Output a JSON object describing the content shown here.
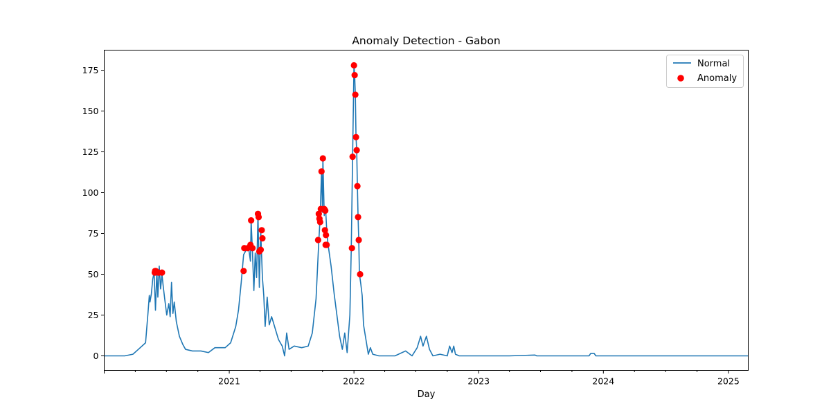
{
  "chart_data": {
    "type": "line",
    "title": "Anomaly Detection - Gabon",
    "xlabel": "Day",
    "ylabel": "",
    "x_range": [
      "2020-01-01",
      "2025-02-28"
    ],
    "ylim": [
      -8.9,
      187.3
    ],
    "y_ticks": [
      0,
      25,
      50,
      75,
      100,
      125,
      150,
      175
    ],
    "x_ticks": [
      {
        "date": "2021-01-01",
        "label": "2021"
      },
      {
        "date": "2022-01-01",
        "label": "2022"
      },
      {
        "date": "2023-01-01",
        "label": "2023"
      },
      {
        "date": "2024-01-01",
        "label": "2024"
      },
      {
        "date": "2025-01-01",
        "label": "2025"
      }
    ],
    "grid": false,
    "legend_position": "top-right",
    "series": [
      {
        "name": "Normal",
        "kind": "line",
        "color": "#1f77b4",
        "points": [
          [
            "2020-01-01",
            0
          ],
          [
            "2020-03-01",
            0
          ],
          [
            "2020-03-25",
            1
          ],
          [
            "2020-04-10",
            4
          ],
          [
            "2020-05-01",
            8
          ],
          [
            "2020-05-08",
            26
          ],
          [
            "2020-05-12",
            37
          ],
          [
            "2020-05-14",
            33
          ],
          [
            "2020-05-18",
            38
          ],
          [
            "2020-05-22",
            47
          ],
          [
            "2020-05-26",
            51
          ],
          [
            "2020-05-30",
            28
          ],
          [
            "2020-06-03",
            52
          ],
          [
            "2020-06-06",
            36
          ],
          [
            "2020-06-10",
            55
          ],
          [
            "2020-06-14",
            41
          ],
          [
            "2020-06-18",
            50
          ],
          [
            "2020-06-22",
            42
          ],
          [
            "2020-06-26",
            35
          ],
          [
            "2020-07-02",
            25
          ],
          [
            "2020-07-08",
            32
          ],
          [
            "2020-07-12",
            24
          ],
          [
            "2020-07-16",
            45
          ],
          [
            "2020-07-20",
            26
          ],
          [
            "2020-07-24",
            33
          ],
          [
            "2020-07-30",
            21
          ],
          [
            "2020-08-08",
            12
          ],
          [
            "2020-08-18",
            7
          ],
          [
            "2020-08-26",
            4
          ],
          [
            "2020-09-15",
            3
          ],
          [
            "2020-10-10",
            3
          ],
          [
            "2020-11-01",
            2
          ],
          [
            "2020-11-20",
            5
          ],
          [
            "2020-12-20",
            5
          ],
          [
            "2021-01-05",
            8
          ],
          [
            "2021-01-20",
            18
          ],
          [
            "2021-01-28",
            28
          ],
          [
            "2021-02-05",
            45
          ],
          [
            "2021-02-12",
            62
          ],
          [
            "2021-02-20",
            65
          ],
          [
            "2021-02-26",
            67
          ],
          [
            "2021-03-04",
            58
          ],
          [
            "2021-03-06",
            83
          ],
          [
            "2021-03-10",
            63
          ],
          [
            "2021-03-14",
            40
          ],
          [
            "2021-03-18",
            63
          ],
          [
            "2021-03-22",
            48
          ],
          [
            "2021-03-26",
            87
          ],
          [
            "2021-03-30",
            42
          ],
          [
            "2021-04-03",
            77
          ],
          [
            "2021-04-08",
            48
          ],
          [
            "2021-04-12",
            37
          ],
          [
            "2021-04-16",
            18
          ],
          [
            "2021-04-22",
            36
          ],
          [
            "2021-04-28",
            19
          ],
          [
            "2021-05-05",
            24
          ],
          [
            "2021-05-15",
            17
          ],
          [
            "2021-05-25",
            10
          ],
          [
            "2021-06-05",
            6
          ],
          [
            "2021-06-12",
            0
          ],
          [
            "2021-06-18",
            14
          ],
          [
            "2021-06-25",
            4
          ],
          [
            "2021-07-10",
            6
          ],
          [
            "2021-08-01",
            5
          ],
          [
            "2021-08-20",
            6
          ],
          [
            "2021-09-01",
            14
          ],
          [
            "2021-09-12",
            35
          ],
          [
            "2021-09-20",
            70
          ],
          [
            "2021-09-24",
            85
          ],
          [
            "2021-09-28",
            113
          ],
          [
            "2021-10-01",
            88
          ],
          [
            "2021-10-02",
            121
          ],
          [
            "2021-10-06",
            86
          ],
          [
            "2021-10-10",
            90
          ],
          [
            "2021-10-14",
            74
          ],
          [
            "2021-10-18",
            67
          ],
          [
            "2021-10-26",
            55
          ],
          [
            "2021-11-04",
            38
          ],
          [
            "2021-11-12",
            25
          ],
          [
            "2021-11-20",
            12
          ],
          [
            "2021-11-28",
            4
          ],
          [
            "2021-12-05",
            14
          ],
          [
            "2021-12-12",
            2
          ],
          [
            "2021-12-20",
            25
          ],
          [
            "2021-12-24",
            65
          ],
          [
            "2021-12-28",
            122
          ],
          [
            "2022-01-01",
            178
          ],
          [
            "2022-01-03",
            172
          ],
          [
            "2022-01-05",
            160
          ],
          [
            "2022-01-07",
            134
          ],
          [
            "2022-01-09",
            126
          ],
          [
            "2022-01-11",
            104
          ],
          [
            "2022-01-13",
            85
          ],
          [
            "2022-01-15",
            71
          ],
          [
            "2022-01-17",
            50
          ],
          [
            "2022-01-21",
            44
          ],
          [
            "2022-01-25",
            37
          ],
          [
            "2022-01-29",
            19
          ],
          [
            "2022-02-05",
            10
          ],
          [
            "2022-02-12",
            1
          ],
          [
            "2022-02-18",
            5
          ],
          [
            "2022-02-25",
            1
          ],
          [
            "2022-03-15",
            0
          ],
          [
            "2022-05-01",
            0
          ],
          [
            "2022-06-01",
            3
          ],
          [
            "2022-06-20",
            0
          ],
          [
            "2022-07-05",
            5
          ],
          [
            "2022-07-15",
            12
          ],
          [
            "2022-07-22",
            6
          ],
          [
            "2022-08-01",
            12
          ],
          [
            "2022-08-10",
            4
          ],
          [
            "2022-08-20",
            0
          ],
          [
            "2022-09-10",
            1
          ],
          [
            "2022-10-01",
            0
          ],
          [
            "2022-10-08",
            6
          ],
          [
            "2022-10-15",
            2
          ],
          [
            "2022-10-20",
            6
          ],
          [
            "2022-10-25",
            1
          ],
          [
            "2022-11-05",
            0
          ],
          [
            "2023-04-01",
            0
          ],
          [
            "2023-06-15",
            0.5
          ],
          [
            "2023-06-20",
            0
          ],
          [
            "2023-11-20",
            0
          ],
          [
            "2023-11-25",
            1.5
          ],
          [
            "2023-12-05",
            1.5
          ],
          [
            "2023-12-10",
            0
          ],
          [
            "2025-01-01",
            0
          ],
          [
            "2025-02-28",
            0
          ]
        ]
      },
      {
        "name": "Anomaly",
        "kind": "scatter",
        "color": "#ff0000",
        "points": [
          [
            "2020-05-28",
            51
          ],
          [
            "2020-05-29",
            52
          ],
          [
            "2020-05-31",
            52
          ],
          [
            "2020-06-08",
            51
          ],
          [
            "2020-06-18",
            51
          ],
          [
            "2021-02-12",
            52
          ],
          [
            "2021-02-14",
            66
          ],
          [
            "2021-02-24",
            66
          ],
          [
            "2021-03-04",
            68
          ],
          [
            "2021-03-06",
            83
          ],
          [
            "2021-03-10",
            66
          ],
          [
            "2021-03-26",
            87
          ],
          [
            "2021-03-28",
            85
          ],
          [
            "2021-03-30",
            64
          ],
          [
            "2021-04-03",
            65
          ],
          [
            "2021-04-06",
            77
          ],
          [
            "2021-04-08",
            72
          ],
          [
            "2021-09-18",
            71
          ],
          [
            "2021-09-20",
            87
          ],
          [
            "2021-09-22",
            84
          ],
          [
            "2021-09-24",
            82
          ],
          [
            "2021-09-26",
            90
          ],
          [
            "2021-09-28",
            113
          ],
          [
            "2021-10-02",
            121
          ],
          [
            "2021-10-06",
            90
          ],
          [
            "2021-10-08",
            77
          ],
          [
            "2021-10-09",
            89
          ],
          [
            "2021-10-10",
            68
          ],
          [
            "2021-10-11",
            74
          ],
          [
            "2021-10-13",
            68
          ],
          [
            "2021-12-26",
            66
          ],
          [
            "2021-12-28",
            122
          ],
          [
            "2022-01-01",
            178
          ],
          [
            "2022-01-03",
            172
          ],
          [
            "2022-01-05",
            160
          ],
          [
            "2022-01-07",
            134
          ],
          [
            "2022-01-09",
            126
          ],
          [
            "2022-01-11",
            104
          ],
          [
            "2022-01-13",
            85
          ],
          [
            "2022-01-15",
            71
          ],
          [
            "2022-01-19",
            50
          ]
        ]
      }
    ]
  }
}
